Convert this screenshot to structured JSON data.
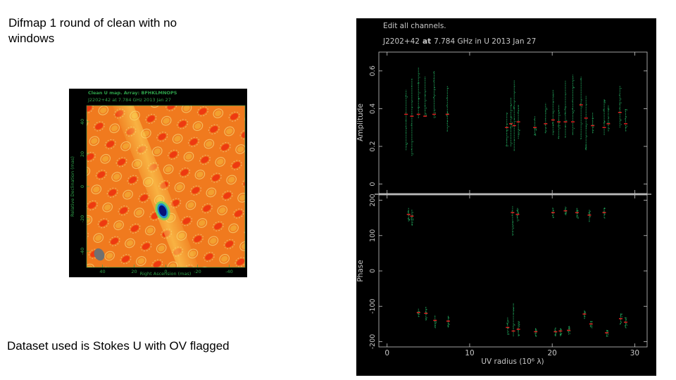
{
  "slide": {
    "title": "Difmap 1 round of clean with no windows",
    "note": "Dataset used is Stokes U with OV flagged"
  },
  "colors": {
    "plot_text": "#c8c8c8",
    "map_label_green": "#2ea04a",
    "amp_point_green": "#1f9a55",
    "model_red": "#e02020",
    "map_background": "#f07820"
  },
  "chart_data": [
    {
      "type": "heatmap",
      "title": "Clean U map.  Array: BFHKLMNOPS",
      "subtitle": "J2202+42 at 7.784 GHz 2013 Jan 27",
      "xlabel": "Right Ascension  (mas)",
      "ylabel": "Relative Declination  (mas)",
      "xlim": [
        50,
        -50
      ],
      "ylim": [
        -50,
        50
      ],
      "xticks": [
        40,
        20,
        0,
        -20,
        -40
      ],
      "yticks": [
        40,
        20,
        0,
        -20,
        -40
      ],
      "features": [
        {
          "label": "",
          "x": 2,
          "y": -15,
          "kind": "negative-peak"
        },
        {
          "label": "",
          "x": 42,
          "y": -42,
          "kind": "beam"
        }
      ]
    },
    {
      "type": "scatter",
      "header": "Edit all channels.",
      "title_source": "J2202+42",
      "title_at": "at",
      "title_rest": "7.784 GHz in U  2013 Jan 27",
      "xlabel": "UV radius  (10⁶ λ)",
      "xlim": [
        -1,
        31.5
      ],
      "xticks": [
        0,
        10,
        20,
        30
      ],
      "panels": [
        {
          "name": "amplitude",
          "ylabel": "Amplitude",
          "ylim": [
            -0.05,
            0.7
          ],
          "yticks": [
            0,
            0.2,
            0.4,
            0.6
          ],
          "clusters": [
            {
              "x": 2.3,
              "ymin": 0.18,
              "ymax": 0.5,
              "model": 0.37
            },
            {
              "x": 3.0,
              "ymin": 0.15,
              "ymax": 0.56,
              "model": 0.36
            },
            {
              "x": 3.8,
              "ymin": 0.35,
              "ymax": 0.62,
              "model": 0.37
            },
            {
              "x": 4.6,
              "ymin": 0.36,
              "ymax": 0.57,
              "model": 0.36
            },
            {
              "x": 5.7,
              "ymin": 0.35,
              "ymax": 0.6,
              "model": 0.37
            },
            {
              "x": 7.3,
              "ymin": 0.28,
              "ymax": 0.52,
              "model": 0.37
            },
            {
              "x": 14.5,
              "ymin": 0.2,
              "ymax": 0.38,
              "model": 0.3
            },
            {
              "x": 15.0,
              "ymin": 0.2,
              "ymax": 0.46,
              "model": 0.32
            },
            {
              "x": 15.4,
              "ymin": 0.18,
              "ymax": 0.55,
              "model": 0.31
            },
            {
              "x": 15.9,
              "ymin": 0.24,
              "ymax": 0.42,
              "model": 0.33
            },
            {
              "x": 17.9,
              "ymin": 0.26,
              "ymax": 0.36,
              "model": 0.3
            },
            {
              "x": 19.2,
              "ymin": 0.27,
              "ymax": 0.43,
              "model": 0.32
            },
            {
              "x": 20.1,
              "ymin": 0.26,
              "ymax": 0.5,
              "model": 0.34
            },
            {
              "x": 20.8,
              "ymin": 0.24,
              "ymax": 0.42,
              "model": 0.33
            },
            {
              "x": 21.6,
              "ymin": 0.25,
              "ymax": 0.55,
              "model": 0.33
            },
            {
              "x": 22.5,
              "ymin": 0.26,
              "ymax": 0.58,
              "model": 0.33
            },
            {
              "x": 23.5,
              "ymin": 0.24,
              "ymax": 0.57,
              "model": 0.42
            },
            {
              "x": 24.1,
              "ymin": 0.18,
              "ymax": 0.47,
              "model": 0.35
            },
            {
              "x": 24.9,
              "ymin": 0.27,
              "ymax": 0.38,
              "model": 0.31
            },
            {
              "x": 26.3,
              "ymin": 0.26,
              "ymax": 0.45,
              "model": 0.3
            },
            {
              "x": 26.8,
              "ymin": 0.28,
              "ymax": 0.42,
              "model": 0.32
            },
            {
              "x": 28.2,
              "ymin": 0.3,
              "ymax": 0.52,
              "model": 0.38
            },
            {
              "x": 28.9,
              "ymin": 0.28,
              "ymax": 0.4,
              "model": 0.32
            }
          ]
        },
        {
          "name": "phase",
          "ylabel": "Phase",
          "ylim": [
            -215,
            215
          ],
          "yticks": [
            -200,
            -100,
            0,
            100,
            200
          ],
          "clusters": [
            {
              "x": 2.6,
              "ymin": 140,
              "ymax": 178,
              "model": 160
            },
            {
              "x": 3.0,
              "ymin": 130,
              "ymax": 175,
              "model": 155
            },
            {
              "x": 3.8,
              "ymin": -130,
              "ymax": -105,
              "model": -118
            },
            {
              "x": 4.7,
              "ymin": -140,
              "ymax": -100,
              "model": -120
            },
            {
              "x": 5.8,
              "ymin": -160,
              "ymax": -125,
              "model": -140
            },
            {
              "x": 7.4,
              "ymin": -160,
              "ymax": -125,
              "model": -142
            },
            {
              "x": 14.6,
              "ymin": -180,
              "ymax": -130,
              "model": -160
            },
            {
              "x": 15.2,
              "ymin": 100,
              "ymax": 185,
              "model": 165
            },
            {
              "x": 15.3,
              "ymin": -185,
              "ymax": -90,
              "model": -170
            },
            {
              "x": 15.8,
              "ymin": 140,
              "ymax": 180,
              "model": 160
            },
            {
              "x": 15.9,
              "ymin": -185,
              "ymax": -140,
              "model": -165
            },
            {
              "x": 18.0,
              "ymin": -185,
              "ymax": -160,
              "model": -172
            },
            {
              "x": 20.1,
              "ymin": 150,
              "ymax": 180,
              "model": 165
            },
            {
              "x": 20.4,
              "ymin": -185,
              "ymax": -160,
              "model": -172
            },
            {
              "x": 21.0,
              "ymin": -185,
              "ymax": -160,
              "model": -170
            },
            {
              "x": 21.6,
              "ymin": 160,
              "ymax": 182,
              "model": 170
            },
            {
              "x": 22.0,
              "ymin": -180,
              "ymax": -155,
              "model": -168
            },
            {
              "x": 23.0,
              "ymin": 150,
              "ymax": 178,
              "model": 165
            },
            {
              "x": 23.9,
              "ymin": -135,
              "ymax": -110,
              "model": -122
            },
            {
              "x": 24.5,
              "ymin": 140,
              "ymax": 175,
              "model": 158
            },
            {
              "x": 24.7,
              "ymin": -160,
              "ymax": -140,
              "model": -150
            },
            {
              "x": 26.3,
              "ymin": 150,
              "ymax": 180,
              "model": 165
            },
            {
              "x": 26.6,
              "ymin": -185,
              "ymax": -165,
              "model": -175
            },
            {
              "x": 28.3,
              "ymin": -150,
              "ymax": -120,
              "model": -135
            },
            {
              "x": 28.9,
              "ymin": -160,
              "ymax": -130,
              "model": -145
            }
          ]
        }
      ]
    }
  ]
}
